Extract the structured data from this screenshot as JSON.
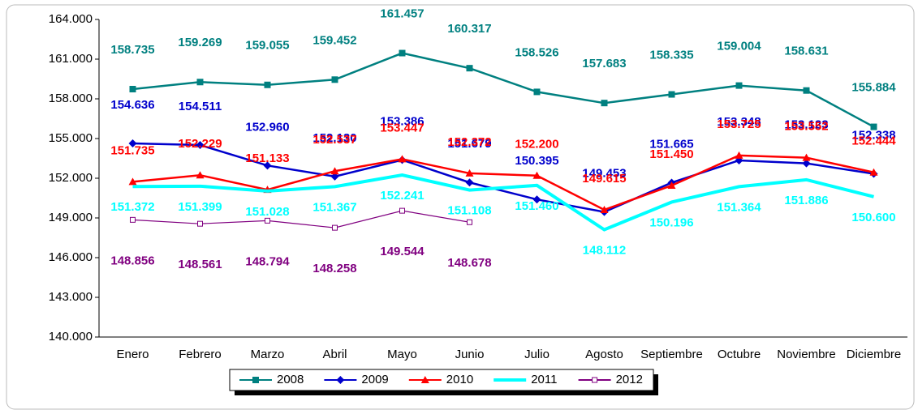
{
  "chart_data": {
    "type": "line",
    "categories": [
      "Enero",
      "Febrero",
      "Marzo",
      "Abril",
      "Mayo",
      "Junio",
      "Julio",
      "Agosto",
      "Septiembre",
      "Octubre",
      "Noviembre",
      "Diciembre"
    ],
    "ylim": [
      140000,
      164000
    ],
    "yticks": [
      {
        "value": 140000,
        "label": "140.000"
      },
      {
        "value": 143000,
        "label": "143.000"
      },
      {
        "value": 146000,
        "label": "146.000"
      },
      {
        "value": 149000,
        "label": "149.000"
      },
      {
        "value": 152000,
        "label": "152.000"
      },
      {
        "value": 155000,
        "label": "155.000"
      },
      {
        "value": 158000,
        "label": "158.000"
      },
      {
        "value": 161000,
        "label": "161.000"
      },
      {
        "value": 164000,
        "label": "164.000"
      }
    ],
    "grid": false,
    "legend": "bottom",
    "series": [
      {
        "name": "2008",
        "color": "#008080",
        "marker": "square",
        "values": [
          158735,
          159269,
          159055,
          159452,
          161457,
          160317,
          158526,
          157683,
          158335,
          159004,
          158631,
          155884
        ],
        "value_labels": [
          "158.735",
          "159.269",
          "159.055",
          "159.452",
          "161.457",
          "160.317",
          "158.526",
          "157.683",
          "158.335",
          "159.004",
          "158.631",
          "155.884"
        ]
      },
      {
        "name": "2009",
        "color": "#0000cc",
        "marker": "diamond",
        "values": [
          154636,
          154511,
          152960,
          152130,
          153386,
          151679,
          150395,
          149453,
          151665,
          153348,
          153123,
          152338
        ],
        "value_labels": [
          "154.636",
          "154.511",
          "152.960",
          "152.130",
          "153.386",
          "151.679",
          "150.395",
          "149.453",
          "151.665",
          "153.348",
          "153.123",
          "152.338"
        ]
      },
      {
        "name": "2010",
        "color": "#ff0000",
        "marker": "triangle",
        "values": [
          151735,
          152229,
          151133,
          152537,
          153447,
          152372,
          152200,
          149615,
          151450,
          153725,
          153552,
          152444
        ],
        "value_labels": [
          "151.735",
          "152.229",
          "151.133",
          "152.537",
          "153.447",
          "152.372",
          "152.200",
          "149.615",
          "151.450",
          "153.725",
          "153.552",
          "152.444"
        ]
      },
      {
        "name": "2011",
        "color": "#00ffff",
        "marker": "none",
        "values": [
          151372,
          151399,
          151028,
          151367,
          152241,
          151108,
          151460,
          148112,
          150196,
          151364,
          151886,
          150600
        ],
        "value_labels": [
          "151.372",
          "151.399",
          "151.028",
          "151.367",
          "152.241",
          "151.108",
          "151.460",
          "148.112",
          "150.196",
          "151.364",
          "151.886",
          "150.600"
        ]
      },
      {
        "name": "2012",
        "color": "#800080",
        "marker": "open-square",
        "values": [
          148856,
          148561,
          148794,
          148258,
          149544,
          148678,
          null,
          null,
          null,
          null,
          null,
          null
        ],
        "value_labels": [
          "148.856",
          "148.561",
          "148.794",
          "148.258",
          "149.544",
          "148.678",
          null,
          null,
          null,
          null,
          null,
          null
        ]
      }
    ]
  }
}
